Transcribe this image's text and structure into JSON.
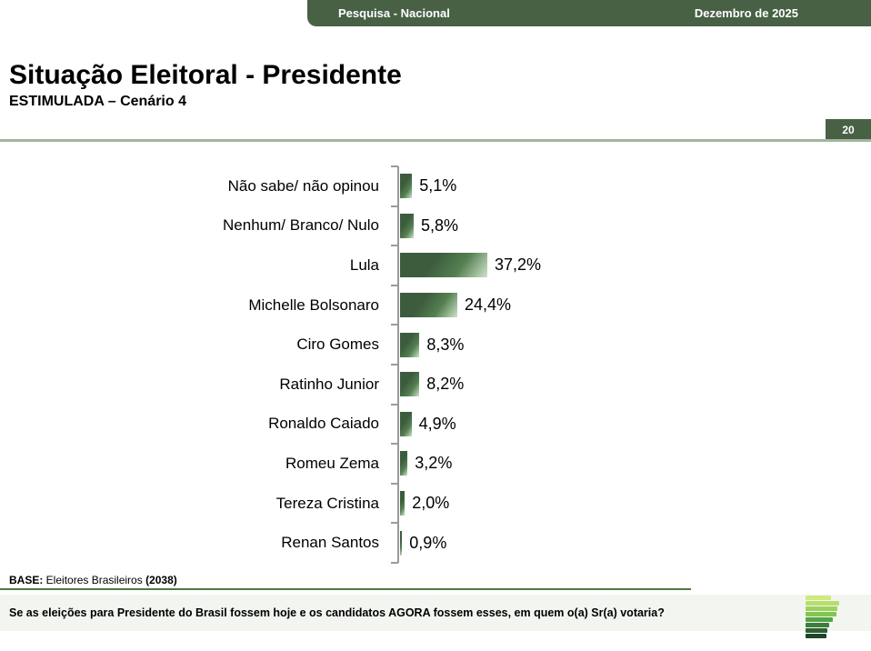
{
  "header": {
    "left_label": "Pesquisa - Nacional",
    "right_label": "Dezembro de 2025",
    "bar_color": "#486145"
  },
  "title": "Situação Eleitoral - Presidente",
  "subtitle": "ESTIMULADA – Cenário 4",
  "page_number": "20",
  "chart_data": {
    "type": "bar",
    "orientation": "horizontal",
    "categories": [
      "Não sabe/ não opinou",
      "Nenhum/ Branco/ Nulo",
      "Lula",
      "Michelle Bolsonaro",
      "Ciro Gomes",
      "Ratinho Junior",
      "Ronaldo Caiado",
      "Romeu Zema",
      "Tereza Cristina",
      "Renan Santos"
    ],
    "values": [
      5.1,
      5.8,
      37.2,
      24.4,
      8.3,
      8.2,
      4.9,
      3.2,
      2.0,
      0.9
    ],
    "value_labels": [
      "5,1%",
      "5,8%",
      "37,2%",
      "24,4%",
      "8,3%",
      "8,2%",
      "4,9%",
      "3,2%",
      "2,0%",
      "0,9%"
    ],
    "unit": "%",
    "title": "Situação Eleitoral - Presidente — ESTIMULADA – Cenário 4",
    "xlabel": "",
    "ylabel": "",
    "xlim": [
      0,
      40
    ],
    "grid": false,
    "legend": false,
    "bar_color_dark": "#3d5c3d",
    "bar_color_light": "#cfe3ca"
  },
  "base": {
    "label": "BASE:",
    "text": " Eleitores Brasileiros ",
    "count": "(2038)"
  },
  "question": "Se as eleições para Presidente do Brasil fossem hoje e os candidatos AGORA fossem esses, em quem o(a) Sr(a) votaria?",
  "logo": {
    "name": "parana-pesquisas-logo",
    "bars": [
      {
        "width": 28,
        "color": "#d2e97e"
      },
      {
        "width": 37,
        "color": "#b7df6b"
      },
      {
        "width": 35,
        "color": "#9dd35c"
      },
      {
        "width": 34,
        "color": "#83c551"
      },
      {
        "width": 30,
        "color": "#55a447"
      },
      {
        "width": 26,
        "color": "#3d7e3d"
      },
      {
        "width": 24,
        "color": "#2d5f32"
      },
      {
        "width": 23,
        "color": "#1d4527"
      }
    ]
  }
}
